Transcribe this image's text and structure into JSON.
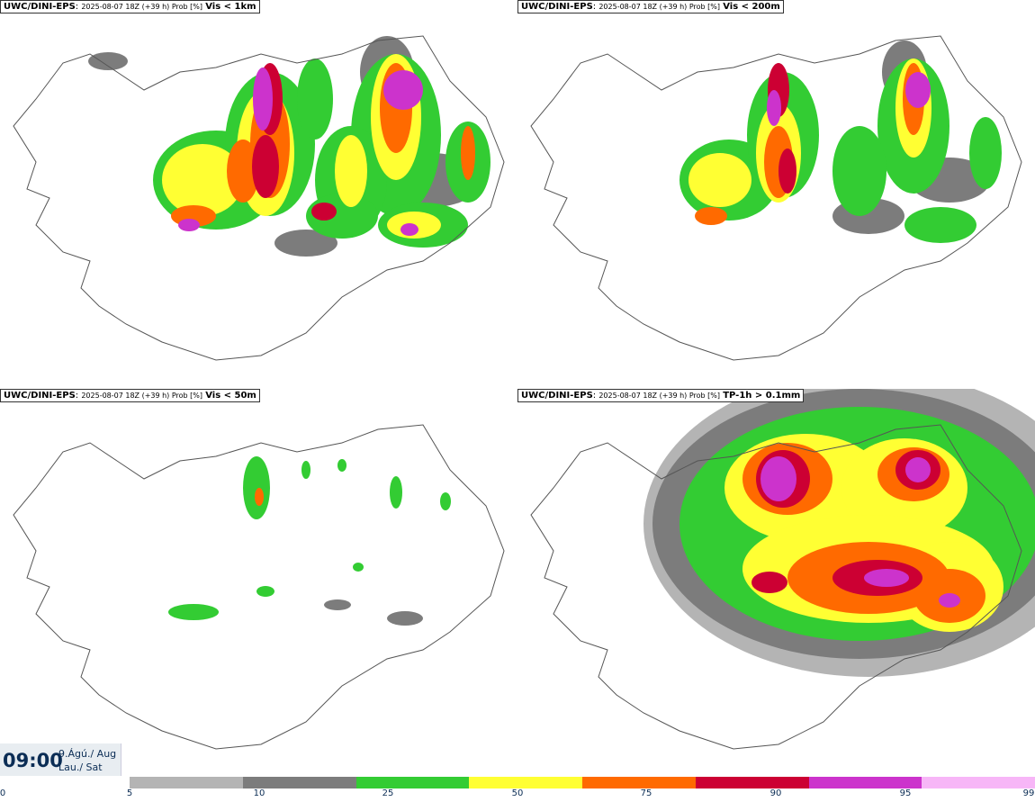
{
  "panels": [
    {
      "model": "UWC/DINI-EPS",
      "meta": "2025-08-07 18Z (+39 h) Prob [%]",
      "variable": "Vis < 1km"
    },
    {
      "model": "UWC/DINI-EPS",
      "meta": "2025-08-07 18Z (+39 h) Prob [%]",
      "variable": "Vis < 200m"
    },
    {
      "model": "UWC/DINI-EPS",
      "meta": "2025-08-07 18Z (+39 h) Prob [%]",
      "variable": "Vis < 50m"
    },
    {
      "model": "UWC/DINI-EPS",
      "meta": "2025-08-07 18Z (+39 h) Prob [%]",
      "variable": "TP-1h > 0.1mm"
    }
  ],
  "valid_time": {
    "time": "09:00",
    "date_line1": "9.Ágú./ Aug",
    "date_line2": "Lau./ Sat"
  },
  "colorbar": {
    "ticks": [
      "0",
      "5",
      "10",
      "25",
      "50",
      "75",
      "90",
      "95",
      "99"
    ],
    "colors": [
      "#b4b4b4",
      "#7c7c7c",
      "#33cc33",
      "#ffff33",
      "#ff6a00",
      "#cc0033",
      "#cc33cc",
      "#f7b6f7"
    ]
  }
}
